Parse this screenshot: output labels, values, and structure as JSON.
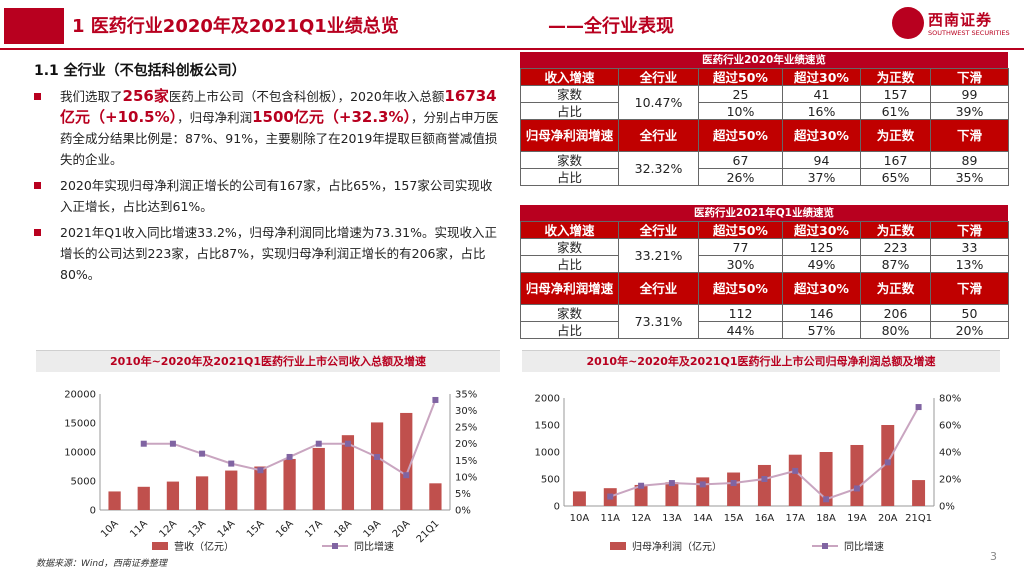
{
  "header": {
    "title": "1 医药行业2020年及2021Q1业绩总览",
    "subtitle": "——全行业表现",
    "logo_name": "西南证券",
    "logo_en": "SOUTHWEST SECURITIES"
  },
  "section": {
    "title": "1.1 全行业（不包括科创板公司）"
  },
  "bullets": {
    "b1": {
      "p1": "我们选取了",
      "h1": "256家",
      "p2": "医药上市公司（不包含科创板），2020年收入总额",
      "h2": "16734亿元（+10.5%）",
      "p3": "，归母净利润",
      "h3": "1500亿元（+32.3%）",
      "p4": "，分别占申万医药全成分结果比例是：87%、91%，主要剔除了在2019年提取巨额商誉减值损失的企业。"
    },
    "b2": "2020年实现归母净利润正增长的公司有167家，占比65%，157家公司实现收入正增长，占比达到61%。",
    "b3": "2021年Q1收入同比增速33.2%，归母净利润同比增速为73.31%。实现收入正增长的公司达到223家，占比87%，实现归母净利润正增长的有206家，占比80%。"
  },
  "table2020": {
    "caption": "医药行业2020年业绩速览",
    "headers": [
      "收入增速",
      "全行业",
      "超过50%",
      "超过30%",
      "为正数",
      "下滑"
    ],
    "rev_overall": "10.47%",
    "rev_count": [
      "家数",
      "25",
      "41",
      "157",
      "99"
    ],
    "rev_ratio": [
      "占比",
      "10%",
      "16%",
      "61%",
      "39%"
    ],
    "np_header": [
      "归母净利润增速",
      "全行业",
      "超过50%",
      "超过30%",
      "为正数",
      "下滑"
    ],
    "np_overall": "32.32%",
    "np_count": [
      "家数",
      "67",
      "94",
      "167",
      "89"
    ],
    "np_ratio": [
      "占比",
      "26%",
      "37%",
      "65%",
      "35%"
    ]
  },
  "table2021": {
    "caption": "医药行业2021年Q1业绩速览",
    "headers": [
      "收入增速",
      "全行业",
      "超过50%",
      "超过30%",
      "为正数",
      "下滑"
    ],
    "rev_overall": "33.21%",
    "rev_count": [
      "家数",
      "77",
      "125",
      "223",
      "33"
    ],
    "rev_ratio": [
      "占比",
      "30%",
      "49%",
      "87%",
      "13%"
    ],
    "np_header": [
      "归母净利润增速",
      "全行业",
      "超过50%",
      "超过30%",
      "为正数",
      "下滑"
    ],
    "np_overall": "73.31%",
    "np_count": [
      "家数",
      "112",
      "146",
      "206",
      "50"
    ],
    "np_ratio": [
      "占比",
      "44%",
      "57%",
      "80%",
      "20%"
    ]
  },
  "chart_data": [
    {
      "type": "bar+line",
      "title": "2010年~2020年及2021Q1医药行业上市公司收入总额及增速",
      "categories": [
        "10A",
        "11A",
        "12A",
        "13A",
        "14A",
        "15A",
        "16A",
        "17A",
        "18A",
        "19A",
        "20A",
        "21Q1"
      ],
      "series": [
        {
          "name": "营收（亿元）",
          "axis": "left",
          "kind": "bar",
          "values": [
            3200,
            4000,
            4900,
            5800,
            6800,
            7500,
            8800,
            10700,
            12900,
            15100,
            16734,
            4600
          ]
        },
        {
          "name": "同比增速",
          "axis": "right",
          "kind": "line",
          "values": [
            null,
            0.2,
            0.2,
            0.17,
            0.14,
            0.12,
            0.16,
            0.2,
            0.2,
            0.16,
            0.105,
            0.332
          ]
        }
      ],
      "ylim": [
        0,
        20000
      ],
      "yticks": [
        "0",
        "5000",
        "10000",
        "15000",
        "20000"
      ],
      "y2lim": [
        0,
        0.35
      ],
      "y2ticks": [
        "0%",
        "5%",
        "10%",
        "15%",
        "20%",
        "25%",
        "30%",
        "35%"
      ],
      "legend": [
        "营收（亿元）",
        "同比增速"
      ]
    },
    {
      "type": "bar+line",
      "title": "2010年~2020年及2021Q1医药行业上市公司归母净利润总额及增速",
      "categories": [
        "10A",
        "11A",
        "12A",
        "13A",
        "14A",
        "15A",
        "16A",
        "17A",
        "18A",
        "19A",
        "20A",
        "21Q1"
      ],
      "series": [
        {
          "name": "归母净利润（亿元）",
          "axis": "left",
          "kind": "bar",
          "values": [
            270,
            330,
            390,
            440,
            530,
            620,
            760,
            950,
            1000,
            1130,
            1500,
            480
          ]
        },
        {
          "name": "同比增速",
          "axis": "right",
          "kind": "line",
          "values": [
            null,
            0.07,
            0.15,
            0.17,
            0.16,
            0.17,
            0.2,
            0.26,
            0.05,
            0.13,
            0.323,
            0.733
          ]
        }
      ],
      "ylim": [
        0,
        2000
      ],
      "yticks": [
        "0",
        "500",
        "1000",
        "1500",
        "2000"
      ],
      "y2lim": [
        0,
        0.8
      ],
      "y2ticks": [
        "0%",
        "20%",
        "40%",
        "60%",
        "80%"
      ],
      "legend": [
        "归母净利润（亿元）",
        "同比增速"
      ]
    }
  ],
  "footer": {
    "source": "数据来源：Wind，西南证券整理",
    "page": "3"
  },
  "colors": {
    "accent": "#b8001f",
    "bar": "#c0504d",
    "line": "#c9a5c0",
    "marker": "#8064a2"
  }
}
